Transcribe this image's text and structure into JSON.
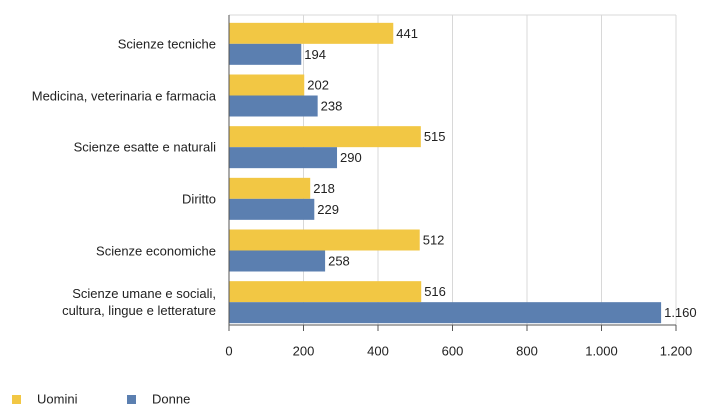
{
  "chart_data": {
    "type": "barh",
    "categories": [
      "Scienze tecniche",
      "Medicina, veterinaria e farmacia",
      "Scienze esatte e naturali",
      "Diritto",
      "Scienze economiche",
      "Scienze umane e sociali,\ncultura, lingue e letterature"
    ],
    "series": [
      {
        "name": "Uomini",
        "color": "#f2c744",
        "values": [
          441,
          202,
          515,
          218,
          512,
          516
        ]
      },
      {
        "name": "Donne",
        "color": "#5b7fb0",
        "values": [
          194,
          238,
          290,
          229,
          258,
          1160
        ],
        "value_labels": [
          "194",
          "238",
          "290",
          "229",
          "258",
          "1.160"
        ]
      }
    ],
    "xlim": [
      0,
      1200
    ],
    "xticks": [
      0,
      200,
      400,
      600,
      800,
      {
        "value": 1000,
        "label": "1.000"
      },
      {
        "value": 1200,
        "label": "1.200"
      }
    ],
    "grid": true
  }
}
